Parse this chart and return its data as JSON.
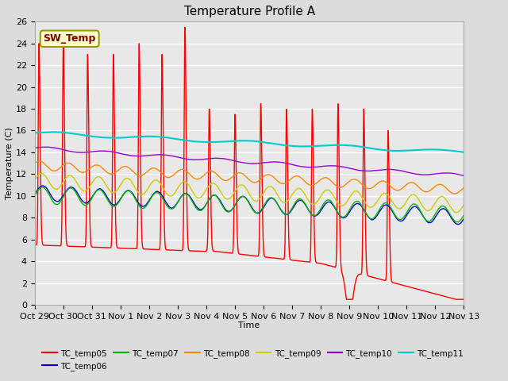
{
  "title": "Temperature Profile A",
  "xlabel": "Time",
  "ylabel": "Temperature (C)",
  "ylim": [
    0,
    26
  ],
  "background_color": "#dcdcdc",
  "plot_bg_color": "#e8e8e8",
  "grid_color": "#ffffff",
  "sw_temp_label": "SW_Temp",
  "sw_temp_box_color": "#ffffcc",
  "sw_temp_text_color": "#800000",
  "sw_temp_edge_color": "#999900",
  "tick_labels": [
    "Oct 29",
    "Oct 30",
    "Oct 31",
    "Nov 1",
    "Nov 2",
    "Nov 3",
    "Nov 4",
    "Nov 5",
    "Nov 6",
    "Nov 7",
    "Nov 8",
    "Nov 9",
    "Nov 10",
    "Nov 11",
    "Nov 12",
    "Nov 13"
  ],
  "series": [
    {
      "name": "TC_temp05",
      "color": "#ff0000",
      "lw": 1.0
    },
    {
      "name": "TC_temp06",
      "color": "#0000cc",
      "lw": 1.0
    },
    {
      "name": "TC_temp07",
      "color": "#00bb00",
      "lw": 1.0
    },
    {
      "name": "TC_temp08",
      "color": "#ff8800",
      "lw": 1.0
    },
    {
      "name": "TC_temp09",
      "color": "#cccc00",
      "lw": 1.0
    },
    {
      "name": "TC_temp10",
      "color": "#9900cc",
      "lw": 1.0
    },
    {
      "name": "TC_temp11",
      "color": "#00cccc",
      "lw": 1.5
    }
  ]
}
